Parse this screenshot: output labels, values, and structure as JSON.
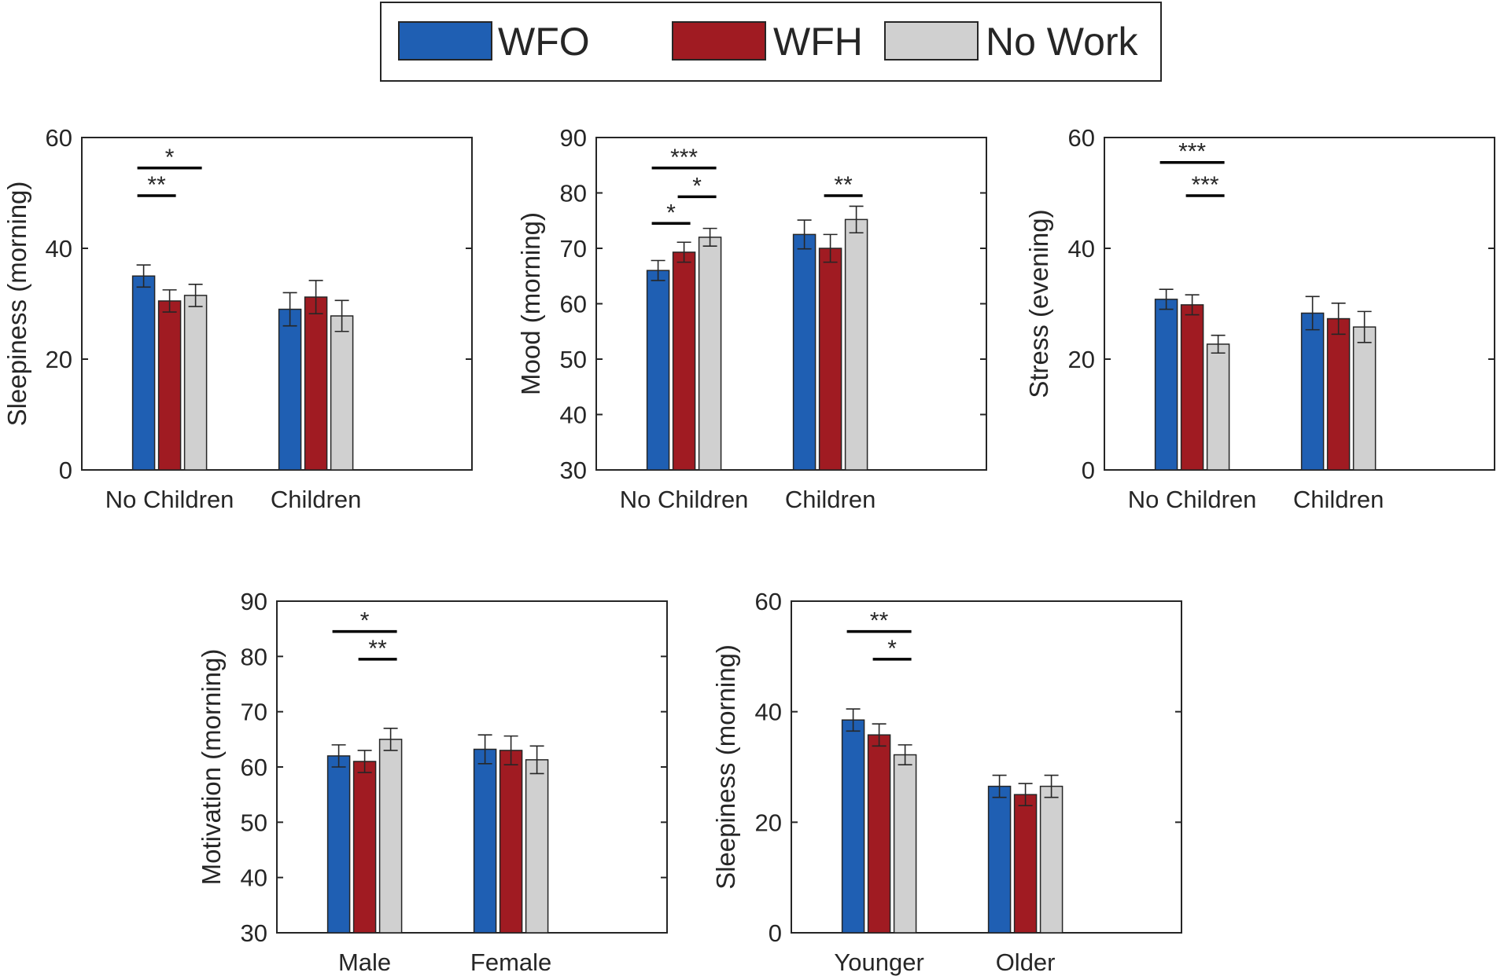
{
  "legend": {
    "entries": [
      {
        "name": "WFO",
        "color": "#1f5fb3"
      },
      {
        "name": "WFH",
        "color": "#a01b22"
      },
      {
        "name": "No Work",
        "color": "#d0d0d0"
      }
    ]
  },
  "chart_data": [
    {
      "type": "bar",
      "ylabel": "Sleepiness (morning)",
      "xlabel": "",
      "categories": [
        "No Children",
        "Children"
      ],
      "ylim": [
        0,
        60
      ],
      "yticks": [
        0,
        20,
        40,
        60
      ],
      "series": [
        {
          "name": "WFO",
          "values": [
            35,
            29
          ],
          "errors": [
            2,
            3
          ]
        },
        {
          "name": "WFH",
          "values": [
            30.5,
            31.2
          ],
          "errors": [
            2,
            3
          ]
        },
        {
          "name": "No Work",
          "values": [
            31.5,
            27.8
          ],
          "errors": [
            2,
            2.8
          ]
        }
      ],
      "significance": [
        {
          "category": 0,
          "from": 0,
          "to": 2,
          "label": "*",
          "y": 54.5
        },
        {
          "category": 0,
          "from": 0,
          "to": 1,
          "label": "**",
          "y": 49.5
        }
      ]
    },
    {
      "type": "bar",
      "ylabel": "Mood (morning)",
      "xlabel": "",
      "categories": [
        "No Children",
        "Children"
      ],
      "ylim": [
        30,
        90
      ],
      "yticks": [
        30,
        40,
        50,
        60,
        70,
        80,
        90
      ],
      "series": [
        {
          "name": "WFO",
          "values": [
            66,
            72.5
          ],
          "errors": [
            1.8,
            2.6
          ]
        },
        {
          "name": "WFH",
          "values": [
            69.3,
            70
          ],
          "errors": [
            1.8,
            2.5
          ]
        },
        {
          "name": "No Work",
          "values": [
            72,
            75.2
          ],
          "errors": [
            1.6,
            2.4
          ]
        }
      ],
      "significance": [
        {
          "category": 0,
          "from": 0,
          "to": 2,
          "label": "***",
          "y": 84.5
        },
        {
          "category": 0,
          "from": 1,
          "to": 2,
          "label": "*",
          "y": 79.3
        },
        {
          "category": 0,
          "from": 0,
          "to": 1,
          "label": "*",
          "y": 74.5
        },
        {
          "category": 1,
          "from": 1,
          "to": 2,
          "label": "**",
          "y": 79.5
        }
      ]
    },
    {
      "type": "bar",
      "ylabel": "Stress (evening)",
      "xlabel": "",
      "categories": [
        "No Children",
        "Children"
      ],
      "ylim": [
        0,
        60
      ],
      "yticks": [
        0,
        20,
        40,
        60
      ],
      "series": [
        {
          "name": "WFO",
          "values": [
            30.8,
            28.3
          ],
          "errors": [
            1.8,
            3
          ]
        },
        {
          "name": "WFH",
          "values": [
            29.8,
            27.3
          ],
          "errors": [
            1.8,
            2.8
          ]
        },
        {
          "name": "No Work",
          "values": [
            22.7,
            25.8
          ],
          "errors": [
            1.6,
            2.8
          ]
        }
      ],
      "significance": [
        {
          "category": 0,
          "from": 0,
          "to": 2,
          "label": "***",
          "y": 55.5
        },
        {
          "category": 0,
          "from": 1,
          "to": 2,
          "label": "***",
          "y": 49.5
        }
      ]
    },
    {
      "type": "bar",
      "ylabel": "Motivation (morning)",
      "xlabel": "",
      "categories": [
        "Male",
        "Female"
      ],
      "ylim": [
        30,
        90
      ],
      "yticks": [
        30,
        40,
        50,
        60,
        70,
        80,
        90
      ],
      "series": [
        {
          "name": "WFO",
          "values": [
            62,
            63.2
          ],
          "errors": [
            2,
            2.6
          ]
        },
        {
          "name": "WFH",
          "values": [
            61,
            63
          ],
          "errors": [
            2,
            2.6
          ]
        },
        {
          "name": "No Work",
          "values": [
            65,
            61.3
          ],
          "errors": [
            2,
            2.5
          ]
        }
      ],
      "significance": [
        {
          "category": 0,
          "from": 0,
          "to": 2,
          "label": "*",
          "y": 84.5
        },
        {
          "category": 0,
          "from": 1,
          "to": 2,
          "label": "**",
          "y": 79.5
        }
      ]
    },
    {
      "type": "bar",
      "ylabel": "Sleepiness (morning)",
      "xlabel": "",
      "categories": [
        "Younger",
        "Older"
      ],
      "ylim": [
        0,
        60
      ],
      "yticks": [
        0,
        20,
        40,
        60
      ],
      "series": [
        {
          "name": "WFO",
          "values": [
            38.5,
            26.5
          ],
          "errors": [
            2,
            2
          ]
        },
        {
          "name": "WFH",
          "values": [
            35.8,
            25
          ],
          "errors": [
            2,
            2
          ]
        },
        {
          "name": "No Work",
          "values": [
            32.2,
            26.5
          ],
          "errors": [
            1.8,
            2
          ]
        }
      ],
      "significance": [
        {
          "category": 0,
          "from": 0,
          "to": 2,
          "label": "**",
          "y": 54.5
        },
        {
          "category": 0,
          "from": 1,
          "to": 2,
          "label": "*",
          "y": 49.5
        }
      ]
    }
  ]
}
